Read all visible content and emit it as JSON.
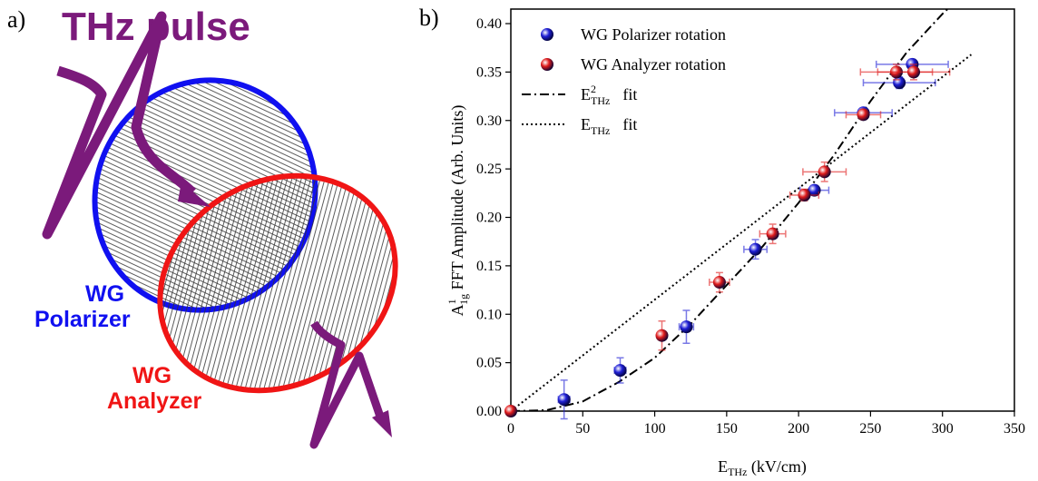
{
  "panel_a": {
    "label": "a)",
    "title": "THz pulse",
    "polarizer_label": [
      "WG",
      "Polarizer"
    ],
    "analyzer_label": [
      "WG",
      "Analyzer"
    ]
  },
  "chart_data": {
    "type": "scatter",
    "panel_label": "b)",
    "xlabel": {
      "base": "E",
      "sub": "THz",
      "rest": " (kV/cm)"
    },
    "ylabel": {
      "base": "A",
      "sup": "1",
      "sub": "1g",
      "rest": " FFT Amplitude (Arb. Units)"
    },
    "xlim": [
      0,
      350
    ],
    "ylim": [
      0,
      0.415
    ],
    "xticks": [
      0,
      50,
      100,
      150,
      200,
      250,
      300,
      350
    ],
    "yticks": [
      {
        "value": 0,
        "label": "0.00"
      },
      0.05,
      {
        "value": 0.1,
        "label": "0.10"
      },
      0.15,
      {
        "value": 0.2,
        "label": "0.20"
      },
      0.25,
      {
        "value": 0.3,
        "label": "0.30"
      },
      0.35,
      {
        "value": 0.4,
        "label": "0.40"
      }
    ],
    "legend": "upper left",
    "series": [
      {
        "name": "WG Polarizer rotation",
        "color": "#1f1fd6",
        "style": "sphere",
        "x": [
          37,
          76,
          122,
          170,
          211,
          245,
          270,
          279
        ],
        "values": [
          0.012,
          0.042,
          0.087,
          0.167,
          0.228,
          0.308,
          0.339,
          0.358
        ],
        "xerr": [
          4,
          4,
          5,
          8,
          10,
          20,
          25,
          25
        ],
        "yerr": [
          0.02,
          0.013,
          0.017,
          0.01,
          0.005,
          0.005,
          0.006,
          0.005
        ]
      },
      {
        "name": "WG Analyzer rotation",
        "color": "#e01b1b",
        "style": "sphere",
        "x": [
          0,
          105,
          145,
          182,
          204,
          218,
          245,
          268,
          280
        ],
        "values": [
          0,
          0.078,
          0.133,
          0.183,
          0.223,
          0.247,
          0.306,
          0.35,
          0.35
        ],
        "xerr": [
          1,
          2,
          7,
          9,
          10,
          15,
          12,
          25,
          25
        ],
        "yerr": [
          0.002,
          0.015,
          0.01,
          0.01,
          0.006,
          0.01,
          0.005,
          0.008,
          0.008
        ]
      },
      {
        "name": "fit",
        "symbol": {
          "base": "E",
          "sup": "2",
          "sub": "THz"
        },
        "color": "#000000",
        "style": "dashdot",
        "x": [
          0,
          25,
          50,
          75,
          100,
          125,
          150,
          175,
          200,
          225,
          250,
          275,
          300,
          307
        ],
        "values": [
          0,
          0.001,
          0.01,
          0.03,
          0.055,
          0.09,
          0.13,
          0.17,
          0.215,
          0.265,
          0.32,
          0.37,
          0.41,
          0.42
        ]
      },
      {
        "name": "fit",
        "symbol": {
          "base": "E",
          "sub": "THz"
        },
        "color": "#000000",
        "style": "dotted",
        "x": [
          0,
          320
        ],
        "values": [
          0,
          0.368
        ]
      }
    ]
  }
}
